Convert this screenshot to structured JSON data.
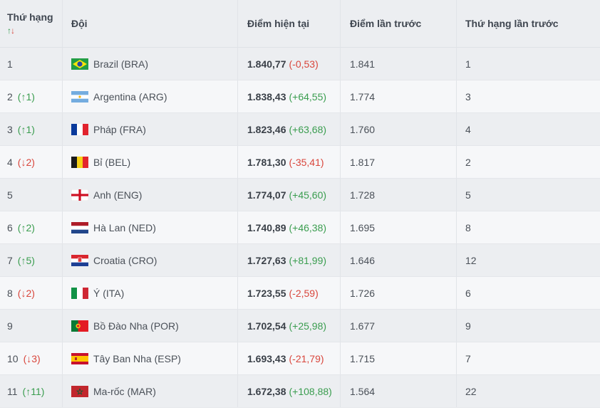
{
  "header": {
    "rank": "Thứ hạng",
    "team": "Đội",
    "current_points": "Điểm hiện tại",
    "previous_points": "Điểm lần trước",
    "previous_rank": "Thứ hạng lần trước"
  },
  "colors": {
    "up": "#3a9d4f",
    "down": "#d9463c"
  },
  "rows": [
    {
      "rank": "1",
      "change": "",
      "dir": "",
      "flag": "brazil-flag-icon",
      "team": "Brazil (BRA)",
      "points": "1.840,77",
      "delta": "(-0,53)",
      "delta_dir": "down",
      "prev_points": "1.841",
      "prev_rank": "1"
    },
    {
      "rank": "2",
      "change": "(↑1)",
      "dir": "up",
      "flag": "argentina-flag-icon",
      "team": "Argentina (ARG)",
      "points": "1.838,43",
      "delta": "(+64,55)",
      "delta_dir": "up",
      "prev_points": "1.774",
      "prev_rank": "3"
    },
    {
      "rank": "3",
      "change": "(↑1)",
      "dir": "up",
      "flag": "france-flag-icon",
      "team": "Pháp (FRA)",
      "points": "1.823,46",
      "delta": "(+63,68)",
      "delta_dir": "up",
      "prev_points": "1.760",
      "prev_rank": "4"
    },
    {
      "rank": "4",
      "change": "(↓2)",
      "dir": "down",
      "flag": "belgium-flag-icon",
      "team": "Bỉ (BEL)",
      "points": "1.781,30",
      "delta": "(-35,41)",
      "delta_dir": "down",
      "prev_points": "1.817",
      "prev_rank": "2"
    },
    {
      "rank": "5",
      "change": "",
      "dir": "",
      "flag": "england-flag-icon",
      "team": "Anh (ENG)",
      "points": "1.774,07",
      "delta": "(+45,60)",
      "delta_dir": "up",
      "prev_points": "1.728",
      "prev_rank": "5"
    },
    {
      "rank": "6",
      "change": "(↑2)",
      "dir": "up",
      "flag": "netherlands-flag-icon",
      "team": "Hà Lan (NED)",
      "points": "1.740,89",
      "delta": "(+46,38)",
      "delta_dir": "up",
      "prev_points": "1.695",
      "prev_rank": "8"
    },
    {
      "rank": "7",
      "change": "(↑5)",
      "dir": "up",
      "flag": "croatia-flag-icon",
      "team": "Croatia (CRO)",
      "points": "1.727,63",
      "delta": "(+81,99)",
      "delta_dir": "up",
      "prev_points": "1.646",
      "prev_rank": "12"
    },
    {
      "rank": "8",
      "change": "(↓2)",
      "dir": "down",
      "flag": "italy-flag-icon",
      "team": "Ý (ITA)",
      "points": "1.723,55",
      "delta": "(-2,59)",
      "delta_dir": "down",
      "prev_points": "1.726",
      "prev_rank": "6"
    },
    {
      "rank": "9",
      "change": "",
      "dir": "",
      "flag": "portugal-flag-icon",
      "team": "Bồ Đào Nha (POR)",
      "points": "1.702,54",
      "delta": "(+25,98)",
      "delta_dir": "up",
      "prev_points": "1.677",
      "prev_rank": "9"
    },
    {
      "rank": "10",
      "change": "(↓3)",
      "dir": "down",
      "flag": "spain-flag-icon",
      "team": "Tây Ban Nha (ESP)",
      "points": "1.693,43",
      "delta": "(-21,79)",
      "delta_dir": "down",
      "prev_points": "1.715",
      "prev_rank": "7"
    },
    {
      "rank": "11",
      "change": "(↑11)",
      "dir": "up",
      "flag": "morocco-flag-icon",
      "team": "Ma-rốc (MAR)",
      "points": "1.672,38",
      "delta": "(+108,88)",
      "delta_dir": "up",
      "prev_points": "1.564",
      "prev_rank": "22"
    }
  ]
}
